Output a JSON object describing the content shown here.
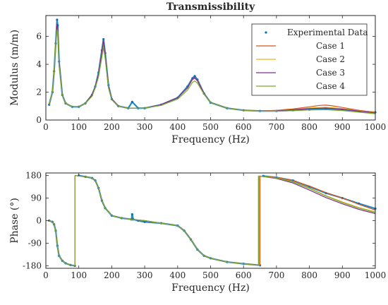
{
  "chart_data": [
    {
      "type": "line",
      "title": "Transmissibility",
      "xlabel": "Frequency (Hz)",
      "ylabel": "Modulus (m/m)",
      "xlim": [
        0,
        1000
      ],
      "ylim": [
        0,
        7.5
      ],
      "xticks": [
        "0",
        "100",
        "200",
        "300",
        "400",
        "500",
        "600",
        "700",
        "800",
        "900",
        "1000"
      ],
      "yticks": [
        "0",
        "2",
        "4",
        "6"
      ],
      "legend": {
        "placement": "top-right",
        "entries": [
          "Experimental Data",
          "Case 1",
          "Case 2",
          "Case 3",
          "Case 4"
        ]
      },
      "series": [
        {
          "name": "Experimental Data",
          "style": "markers",
          "color": "#0072BD",
          "x": [
            10,
            20,
            25,
            30,
            34,
            36,
            40,
            50,
            60,
            80,
            100,
            120,
            140,
            150,
            160,
            170,
            175,
            180,
            190,
            200,
            220,
            250,
            262,
            280,
            300,
            350,
            400,
            430,
            445,
            452,
            460,
            480,
            500,
            550,
            600,
            650,
            700,
            750,
            800,
            850,
            900,
            950,
            1000
          ],
          "y": [
            1.1,
            2.0,
            3.5,
            5.5,
            7.2,
            6.8,
            4.2,
            1.8,
            1.2,
            0.95,
            0.95,
            1.2,
            1.8,
            2.4,
            3.4,
            5.0,
            5.8,
            4.8,
            2.5,
            1.5,
            1.0,
            0.85,
            1.3,
            0.85,
            0.85,
            1.1,
            1.6,
            2.4,
            3.0,
            3.15,
            2.9,
            1.9,
            1.25,
            0.85,
            0.7,
            0.65,
            0.65,
            0.7,
            0.75,
            0.8,
            0.75,
            0.65,
            0.55
          ]
        },
        {
          "name": "Case 1",
          "style": "line",
          "color": "#D95319",
          "x": [
            10,
            20,
            25,
            30,
            34,
            36,
            40,
            50,
            60,
            80,
            100,
            120,
            140,
            150,
            160,
            170,
            175,
            180,
            190,
            200,
            220,
            250,
            300,
            350,
            400,
            430,
            445,
            452,
            460,
            480,
            500,
            550,
            600,
            650,
            700,
            750,
            800,
            830,
            850,
            870,
            900,
            950,
            1000
          ],
          "y": [
            1.1,
            2.0,
            3.5,
            5.5,
            6.7,
            6.5,
            4.0,
            1.8,
            1.2,
            0.95,
            0.95,
            1.2,
            1.8,
            2.4,
            3.3,
            4.8,
            5.5,
            4.6,
            2.4,
            1.5,
            1.0,
            0.85,
            0.85,
            1.1,
            1.6,
            2.3,
            2.9,
            3.0,
            2.8,
            1.9,
            1.25,
            0.85,
            0.7,
            0.65,
            0.7,
            0.8,
            0.95,
            1.05,
            1.07,
            1.02,
            0.9,
            0.7,
            0.55
          ]
        },
        {
          "name": "Case 2",
          "style": "line",
          "color": "#EDB120",
          "x": [
            10,
            20,
            25,
            30,
            34,
            36,
            40,
            50,
            60,
            80,
            100,
            120,
            140,
            150,
            160,
            170,
            175,
            180,
            190,
            200,
            220,
            250,
            300,
            350,
            400,
            430,
            445,
            452,
            460,
            480,
            500,
            550,
            600,
            650,
            700,
            750,
            800,
            850,
            900,
            950,
            1000
          ],
          "y": [
            1.1,
            2.0,
            3.5,
            5.5,
            6.8,
            6.6,
            4.0,
            1.8,
            1.2,
            0.95,
            0.95,
            1.2,
            1.8,
            2.4,
            3.3,
            4.9,
            5.6,
            4.7,
            2.4,
            1.5,
            1.0,
            0.85,
            0.85,
            1.1,
            1.6,
            2.3,
            2.95,
            3.05,
            2.85,
            1.9,
            1.25,
            0.85,
            0.7,
            0.65,
            0.68,
            0.76,
            0.86,
            0.92,
            0.82,
            0.66,
            0.52
          ]
        },
        {
          "name": "Case 3",
          "style": "line",
          "color": "#7E2F8E",
          "x": [
            10,
            20,
            25,
            30,
            34,
            36,
            40,
            50,
            60,
            80,
            100,
            120,
            140,
            150,
            160,
            170,
            175,
            180,
            190,
            200,
            220,
            250,
            300,
            350,
            400,
            430,
            445,
            452,
            460,
            480,
            500,
            550,
            600,
            650,
            700,
            750,
            800,
            850,
            900,
            950,
            1000
          ],
          "y": [
            1.1,
            2.0,
            3.5,
            5.5,
            6.9,
            6.7,
            4.1,
            1.8,
            1.2,
            0.95,
            0.95,
            1.2,
            1.8,
            2.4,
            3.3,
            4.9,
            5.7,
            4.7,
            2.4,
            1.5,
            1.0,
            0.85,
            0.85,
            1.1,
            1.6,
            2.3,
            2.95,
            3.05,
            2.85,
            1.9,
            1.25,
            0.85,
            0.7,
            0.65,
            0.67,
            0.74,
            0.82,
            0.86,
            0.78,
            0.64,
            0.5
          ]
        },
        {
          "name": "Case 4",
          "style": "line",
          "color": "#77AC30",
          "x": [
            10,
            20,
            25,
            30,
            34,
            36,
            40,
            50,
            60,
            80,
            100,
            120,
            140,
            150,
            160,
            170,
            175,
            180,
            190,
            200,
            220,
            250,
            300,
            350,
            400,
            430,
            445,
            452,
            460,
            480,
            500,
            550,
            600,
            650,
            700,
            750,
            800,
            850,
            900,
            950,
            1000
          ],
          "y": [
            1.1,
            2.0,
            3.5,
            5.4,
            6.5,
            6.3,
            3.9,
            1.8,
            1.2,
            0.95,
            0.95,
            1.2,
            1.7,
            2.3,
            3.1,
            4.5,
            5.2,
            4.4,
            2.3,
            1.45,
            1.0,
            0.85,
            0.85,
            1.05,
            1.5,
            2.15,
            2.7,
            2.8,
            2.65,
            1.85,
            1.25,
            0.85,
            0.7,
            0.64,
            0.64,
            0.67,
            0.72,
            0.74,
            0.68,
            0.56,
            0.45
          ]
        }
      ]
    },
    {
      "type": "line",
      "title": "",
      "xlabel": "Frequency (Hz)",
      "ylabel": "Phase (°)",
      "xlim": [
        0,
        1000
      ],
      "ylim": [
        -190,
        190
      ],
      "xticks": [
        "0",
        "100",
        "200",
        "300",
        "400",
        "500",
        "600",
        "700",
        "800",
        "900",
        "1000"
      ],
      "yticks": [
        "180",
        "90",
        "0",
        "-90",
        "-180"
      ],
      "series": [
        {
          "name": "Experimental Data",
          "style": "markers",
          "color": "#0072BD",
          "x": [
            10,
            20,
            25,
            30,
            35,
            40,
            50,
            60,
            75,
            88,
            100,
            120,
            140,
            150,
            160,
            170,
            180,
            200,
            230,
            260,
            262,
            265,
            280,
            300,
            350,
            400,
            420,
            440,
            460,
            480,
            500,
            550,
            600,
            650,
            660,
            700,
            750,
            800,
            850,
            900,
            950,
            1000
          ],
          "y": [
            0,
            -5,
            -15,
            -40,
            -100,
            -140,
            -160,
            -170,
            -177,
            -180,
            180,
            175,
            170,
            160,
            130,
            80,
            50,
            20,
            10,
            5,
            25,
            5,
            0,
            -5,
            -10,
            -20,
            -40,
            -75,
            -115,
            -140,
            -150,
            -165,
            -172,
            -178,
            178,
            172,
            160,
            135,
            110,
            90,
            68,
            48
          ]
        },
        {
          "name": "Case 1",
          "style": "line",
          "color": "#D95319",
          "x": [
            10,
            20,
            25,
            30,
            35,
            40,
            50,
            60,
            75,
            88,
            88.1,
            120,
            140,
            150,
            160,
            170,
            180,
            200,
            230,
            260,
            300,
            350,
            400,
            420,
            440,
            460,
            480,
            500,
            550,
            600,
            650,
            650.1,
            700,
            750,
            800,
            850,
            900,
            950,
            1000
          ],
          "y": [
            0,
            -5,
            -15,
            -40,
            -100,
            -140,
            -160,
            -170,
            -177,
            -180,
            180,
            175,
            170,
            160,
            130,
            80,
            50,
            20,
            10,
            5,
            0,
            -10,
            -20,
            -40,
            -75,
            -115,
            -140,
            -150,
            -165,
            -172,
            -178,
            178,
            172,
            160,
            138,
            112,
            90,
            65,
            42
          ]
        },
        {
          "name": "Case 2",
          "style": "line",
          "color": "#EDB120",
          "x": [
            10,
            20,
            25,
            30,
            35,
            40,
            50,
            60,
            75,
            88,
            88.1,
            120,
            140,
            150,
            160,
            170,
            180,
            200,
            230,
            260,
            300,
            350,
            400,
            420,
            440,
            460,
            480,
            500,
            550,
            600,
            648,
            648.1,
            700,
            750,
            800,
            850,
            900,
            950,
            1000
          ],
          "y": [
            0,
            -5,
            -15,
            -40,
            -100,
            -140,
            -160,
            -170,
            -177,
            -180,
            180,
            175,
            170,
            160,
            130,
            80,
            50,
            20,
            10,
            5,
            0,
            -10,
            -20,
            -40,
            -75,
            -115,
            -140,
            -150,
            -165,
            -172,
            -178,
            178,
            170,
            155,
            130,
            100,
            75,
            52,
            35
          ]
        },
        {
          "name": "Case 3",
          "style": "line",
          "color": "#7E2F8E",
          "x": [
            10,
            20,
            25,
            30,
            35,
            40,
            50,
            60,
            75,
            88,
            88.1,
            120,
            140,
            150,
            160,
            170,
            180,
            200,
            230,
            260,
            300,
            350,
            400,
            420,
            440,
            460,
            480,
            500,
            550,
            600,
            646,
            646.1,
            700,
            750,
            800,
            850,
            900,
            950,
            1000
          ],
          "y": [
            0,
            -5,
            -15,
            -40,
            -100,
            -140,
            -160,
            -170,
            -177,
            -180,
            180,
            175,
            170,
            160,
            130,
            80,
            50,
            20,
            10,
            5,
            0,
            -10,
            -20,
            -40,
            -75,
            -115,
            -140,
            -150,
            -165,
            -172,
            -178,
            178,
            168,
            150,
            122,
            92,
            67,
            45,
            28
          ]
        },
        {
          "name": "Case 4",
          "style": "line",
          "color": "#77AC30",
          "x": [
            10,
            20,
            25,
            30,
            35,
            40,
            50,
            60,
            75,
            88,
            88.1,
            120,
            140,
            150,
            160,
            170,
            180,
            200,
            230,
            260,
            300,
            350,
            400,
            420,
            440,
            460,
            480,
            500,
            550,
            600,
            645,
            645.1,
            700,
            750,
            800,
            850,
            900,
            950,
            1000
          ],
          "y": [
            0,
            -5,
            -15,
            -40,
            -100,
            -140,
            -160,
            -170,
            -177,
            -180,
            180,
            175,
            170,
            160,
            130,
            80,
            50,
            20,
            10,
            5,
            0,
            -10,
            -20,
            -40,
            -75,
            -115,
            -140,
            -150,
            -165,
            -172,
            -178,
            178,
            170,
            154,
            128,
            98,
            72,
            50,
            32
          ]
        }
      ]
    }
  ]
}
